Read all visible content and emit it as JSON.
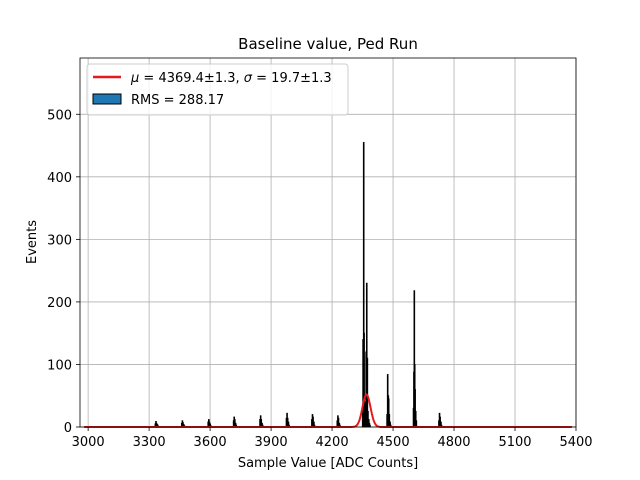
{
  "chart_data": {
    "type": "bar",
    "title": "Baseline value, Ped Run",
    "xlabel": "Sample Value [ADC Counts]",
    "ylabel": "Events",
    "xlim": [
      2960,
      5400
    ],
    "ylim": [
      0,
      590
    ],
    "xticks": [
      "3000",
      "3300",
      "3600",
      "3900",
      "4200",
      "4500",
      "4800",
      "5100",
      "5400"
    ],
    "yticks": [
      "0",
      "100",
      "200",
      "300",
      "400",
      "500"
    ],
    "grid": true,
    "legend_position": "top-left",
    "series": [
      {
        "name": "RMS = 288.17",
        "kind": "histogram",
        "color": "#1f77b4",
        "edgecolor": "#000000",
        "x": [
          3330,
          3333,
          3336,
          3340,
          3343,
          3460,
          3463,
          3466,
          3470,
          3473,
          3590,
          3593,
          3596,
          3600,
          3603,
          3715,
          3718,
          3721,
          3725,
          3728,
          3845,
          3848,
          3851,
          3855,
          3858,
          3975,
          3978,
          3981,
          3985,
          3988,
          4100,
          4103,
          4106,
          4110,
          4113,
          4225,
          4228,
          4231,
          4235,
          4238,
          4350,
          4352,
          4355,
          4357,
          4360,
          4365,
          4367,
          4370,
          4373,
          4376,
          4380,
          4383,
          4386,
          4470,
          4473,
          4476,
          4478,
          4481,
          4485,
          4488,
          4600,
          4602,
          4604,
          4606,
          4608,
          4611,
          4614,
          4725,
          4728,
          4731,
          4735,
          4738
        ],
        "values": [
          5,
          9,
          6,
          4,
          2,
          6,
          10,
          7,
          4,
          2,
          8,
          12,
          8,
          5,
          2,
          10,
          16,
          12,
          6,
          3,
          12,
          18,
          12,
          6,
          3,
          14,
          22,
          14,
          8,
          3,
          12,
          20,
          16,
          8,
          3,
          10,
          18,
          14,
          6,
          3,
          30,
          140,
          455,
          150,
          40,
          30,
          120,
          230,
          110,
          25,
          12,
          6,
          3,
          20,
          84,
          50,
          45,
          20,
          8,
          3,
          30,
          88,
          218,
          100,
          60,
          25,
          10,
          10,
          22,
          16,
          8,
          3
        ]
      },
      {
        "name": "$\\mu = 4369.4\\pm1.3$, $\\sigma = 19.7\\pm1.3$",
        "kind": "gaussian-fit",
        "color": "#e41a1c",
        "mu": 4369.4,
        "sigma": 19.7,
        "amplitude": 52
      }
    ]
  },
  "legend": {
    "fit_label_mu": "μ",
    "fit_label_mid": " = 4369.4±1.3, ",
    "fit_label_sigma": "σ",
    "fit_label_tail": " = 19.7±1.3",
    "hist_label": "RMS = 288.17"
  }
}
